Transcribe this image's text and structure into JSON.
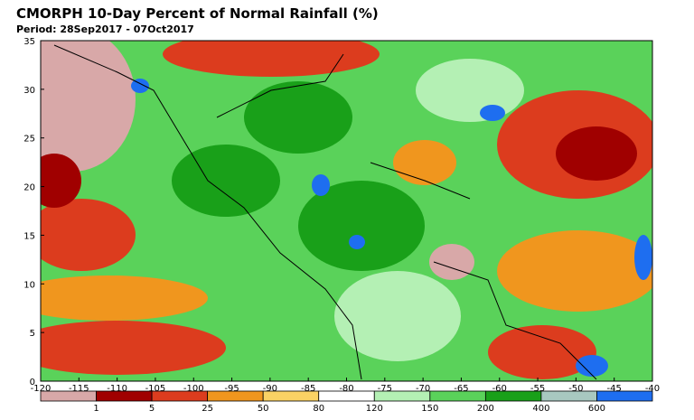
{
  "title": "CMORPH 10-Day Percent of Normal Rainfall (%)",
  "period": "Period: 28Sep2017 - 07Oct2017",
  "map": {
    "xlim": [
      -120,
      -40
    ],
    "ylim": [
      0,
      35
    ],
    "xticks": [
      -120,
      -115,
      -110,
      -105,
      -100,
      -95,
      -90,
      -85,
      -80,
      -75,
      -70,
      -65,
      -60,
      -55,
      -50,
      -45,
      -40
    ],
    "yticks": [
      0,
      5,
      10,
      15,
      20,
      25,
      30,
      35
    ]
  },
  "legend": {
    "bounds": [
      1,
      5,
      25,
      50,
      80,
      120,
      150,
      200,
      400,
      600
    ],
    "colors": [
      "#d8a8a8",
      "#a00000",
      "#dc3c1e",
      "#f0961e",
      "#fad264",
      "#ffffff",
      "#b4f0b4",
      "#5ad25a",
      "#19a019",
      "#a8c8c0",
      "#1e6ef0"
    ]
  }
}
